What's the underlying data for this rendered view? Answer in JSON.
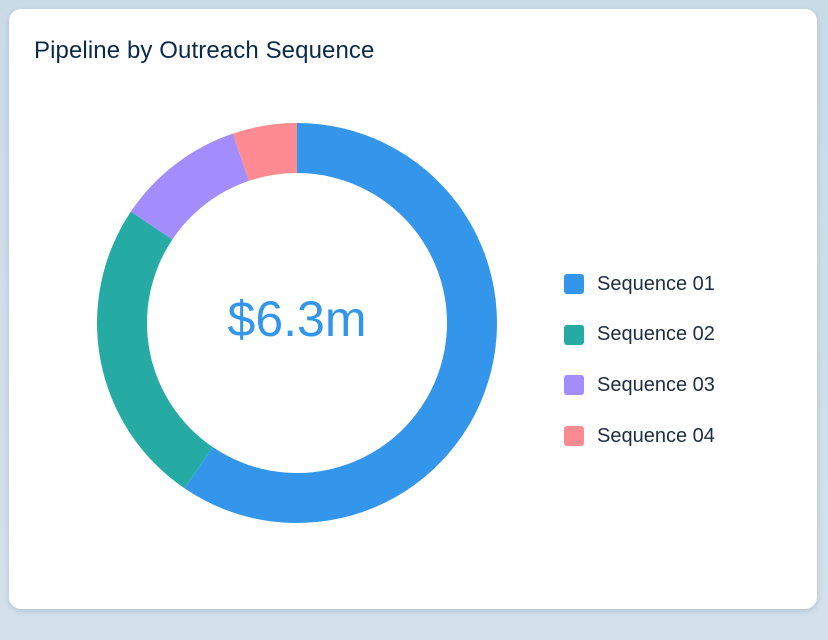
{
  "card": {
    "title": "Pipeline by Outreach Sequence"
  },
  "chart_data": {
    "type": "donut",
    "title": "Pipeline by Outreach Sequence",
    "center_label": "$6.3m",
    "start_angle_deg": 0,
    "direction": "clockwise",
    "legend_position": "right",
    "series": [
      {
        "name": "Sequence 01",
        "share": 0.595,
        "color": "#3496ea"
      },
      {
        "name": "Sequence 02",
        "share": 0.249,
        "color": "#26aba4"
      },
      {
        "name": "Sequence 03",
        "share": 0.104,
        "color": "#a38cfb"
      },
      {
        "name": "Sequence 04",
        "share": 0.052,
        "color": "#fd8b91"
      }
    ]
  }
}
